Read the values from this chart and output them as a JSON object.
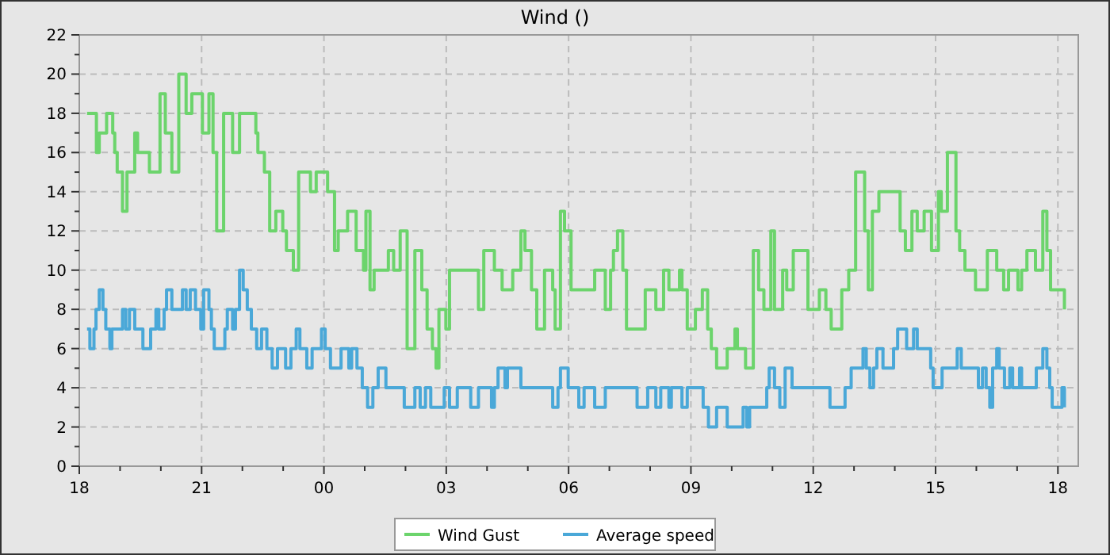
{
  "chart_data": {
    "type": "step",
    "title": "Wind ()",
    "legend": "bottom",
    "grid": true,
    "line_style": "solid",
    "marker": "none",
    "xlim": [
      18,
      42.5
    ],
    "xticks": [
      {
        "value": 18,
        "label": "18"
      },
      {
        "value": 19,
        "label": null
      },
      {
        "value": 20,
        "label": null
      },
      {
        "value": 21,
        "label": "21"
      },
      {
        "value": 22,
        "label": null
      },
      {
        "value": 23,
        "label": null
      },
      {
        "value": 24,
        "label": "00"
      },
      {
        "value": 25,
        "label": null
      },
      {
        "value": 26,
        "label": null
      },
      {
        "value": 27,
        "label": "03"
      },
      {
        "value": 28,
        "label": null
      },
      {
        "value": 29,
        "label": null
      },
      {
        "value": 30,
        "label": "06"
      },
      {
        "value": 31,
        "label": null
      },
      {
        "value": 32,
        "label": null
      },
      {
        "value": 33,
        "label": "09"
      },
      {
        "value": 34,
        "label": null
      },
      {
        "value": 35,
        "label": null
      },
      {
        "value": 36,
        "label": "12"
      },
      {
        "value": 37,
        "label": null
      },
      {
        "value": 38,
        "label": null
      },
      {
        "value": 39,
        "label": "15"
      },
      {
        "value": 40,
        "label": null
      },
      {
        "value": 41,
        "label": null
      },
      {
        "value": 42,
        "label": "18"
      }
    ],
    "ylim": [
      0,
      22
    ],
    "yticks": [
      0,
      {
        "value": 1,
        "label": null
      },
      2,
      {
        "value": 3,
        "label": null
      },
      4,
      {
        "value": 5,
        "label": null
      },
      6,
      {
        "value": 7,
        "label": null
      },
      8,
      {
        "value": 9,
        "label": null
      },
      10,
      {
        "value": 11,
        "label": null
      },
      12,
      {
        "value": 13,
        "label": null
      },
      14,
      {
        "value": 15,
        "label": null
      },
      16,
      {
        "value": 17,
        "label": null
      },
      18,
      {
        "value": 19,
        "label": null
      },
      20,
      {
        "value": 21,
        "label": null
      },
      22
    ],
    "series": [
      {
        "name": "Wind Gust",
        "color": "#6cd46c",
        "x": [
          18.19,
          18.42,
          18.49,
          18.67,
          18.82,
          18.87,
          18.93,
          19.06,
          19.17,
          19.36,
          19.43,
          19.72,
          19.98,
          20.11,
          20.27,
          20.44,
          20.62,
          20.76,
          21.02,
          21.18,
          21.28,
          21.37,
          21.54,
          21.76,
          21.93,
          22.33,
          22.38,
          22.54,
          22.67,
          22.82,
          22.99,
          23.08,
          23.25,
          23.38,
          23.67,
          23.81,
          24.09,
          24.26,
          24.35,
          24.58,
          24.79,
          24.97,
          25.03,
          25.13,
          25.23,
          25.58,
          25.71,
          25.87,
          26.04,
          26.23,
          26.4,
          26.53,
          26.66,
          26.75,
          26.82,
          26.99,
          27.08,
          27.57,
          27.79,
          27.92,
          28.18,
          28.37,
          28.63,
          28.83,
          28.93,
          29.09,
          29.22,
          29.41,
          29.61,
          29.67,
          29.8,
          29.9,
          30.06,
          30.64,
          30.9,
          31.03,
          31.1,
          31.2,
          31.33,
          31.42,
          31.88,
          32.14,
          32.33,
          32.46,
          32.72,
          32.78,
          32.91,
          33.11,
          33.28,
          33.41,
          33.5,
          33.63,
          33.89,
          34.08,
          34.14,
          34.34,
          34.53,
          34.66,
          34.79,
          34.96,
          35.05,
          35.25,
          35.35,
          35.51,
          35.87,
          36.15,
          36.31,
          36.44,
          36.7,
          36.87,
          37.04,
          37.26,
          37.35,
          37.45,
          37.61,
          38.13,
          38.26,
          38.42,
          38.55,
          38.72,
          38.9,
          39.07,
          39.14,
          39.29,
          39.5,
          39.59,
          39.72,
          39.98,
          40.27,
          40.5,
          40.67,
          40.79,
          41.02,
          41.11,
          41.24,
          41.45,
          41.63,
          41.73,
          41.82,
          42.16
        ],
        "values": [
          18,
          16,
          17,
          18,
          17,
          16,
          15,
          13,
          15,
          17,
          16,
          15,
          19,
          17,
          15,
          20,
          18,
          19,
          17,
          19,
          16,
          12,
          18,
          16,
          18,
          17,
          16,
          15,
          12,
          13,
          12,
          11,
          10,
          15,
          14,
          15,
          14,
          11,
          12,
          13,
          11,
          10,
          13,
          9,
          10,
          11,
          10,
          12,
          6,
          11,
          9,
          7,
          6,
          5,
          8,
          7,
          10,
          10,
          8,
          11,
          10,
          9,
          10,
          12,
          11,
          9,
          7,
          10,
          9,
          7,
          13,
          12,
          9,
          10,
          8,
          10,
          11,
          12,
          10,
          7,
          9,
          8,
          10,
          9,
          10,
          9,
          7,
          8,
          9,
          7,
          6,
          5,
          6,
          7,
          6,
          5,
          11,
          9,
          8,
          12,
          8,
          10,
          9,
          11,
          8,
          9,
          8,
          7,
          9,
          10,
          15,
          12,
          9,
          13,
          14,
          12,
          11,
          13,
          12,
          13,
          11,
          14,
          13,
          16,
          12,
          11,
          10,
          9,
          11,
          10,
          9,
          10,
          9,
          10,
          11,
          10,
          13,
          11,
          9,
          8
        ]
      },
      {
        "name": "Average speed",
        "color": "#4aa8d8",
        "x": [
          18.19,
          18.26,
          18.36,
          18.41,
          18.49,
          18.58,
          18.65,
          18.75,
          18.8,
          19.06,
          19.14,
          19.23,
          19.36,
          19.56,
          19.75,
          19.88,
          19.95,
          20.08,
          20.14,
          20.27,
          20.53,
          20.62,
          20.72,
          20.85,
          20.98,
          21.05,
          21.18,
          21.24,
          21.31,
          21.57,
          21.63,
          21.76,
          21.83,
          21.93,
          22.02,
          22.12,
          22.22,
          22.35,
          22.47,
          22.6,
          22.73,
          22.86,
          23.06,
          23.19,
          23.32,
          23.41,
          23.58,
          23.71,
          23.94,
          24.03,
          24.16,
          24.42,
          24.61,
          24.68,
          24.81,
          24.94,
          25.07,
          25.2,
          25.33,
          25.52,
          25.97,
          26.23,
          26.36,
          26.49,
          26.62,
          26.95,
          27.08,
          27.27,
          27.6,
          27.79,
          28.11,
          28.18,
          28.27,
          28.44,
          28.5,
          28.83,
          29.61,
          29.74,
          29.8,
          29.99,
          30.25,
          30.38,
          30.64,
          30.9,
          31.68,
          31.94,
          32.14,
          32.26,
          32.46,
          32.52,
          32.78,
          32.91,
          33.3,
          33.43,
          33.63,
          33.89,
          34.28,
          34.37,
          34.44,
          34.86,
          34.92,
          35.05,
          35.18,
          35.31,
          35.48,
          36.41,
          36.78,
          36.93,
          37.22,
          37.3,
          37.39,
          37.48,
          37.56,
          37.71,
          37.97,
          38.07,
          38.29,
          38.46,
          38.55,
          38.88,
          38.94,
          39.16,
          39.53,
          39.63,
          40.05,
          40.15,
          40.24,
          40.33,
          40.4,
          40.5,
          40.56,
          40.69,
          40.82,
          40.89,
          41.06,
          41.11,
          41.47,
          41.63,
          41.73,
          41.8,
          41.86,
          42.1,
          42.16
        ],
        "values": [
          7,
          6,
          7,
          8,
          9,
          8,
          7,
          6,
          7,
          8,
          7,
          8,
          7,
          6,
          7,
          8,
          7,
          8,
          9,
          8,
          9,
          8,
          9,
          8,
          7,
          9,
          8,
          7,
          6,
          7,
          8,
          7,
          8,
          10,
          9,
          8,
          7,
          6,
          7,
          6,
          5,
          6,
          5,
          6,
          7,
          6,
          5,
          6,
          7,
          6,
          5,
          6,
          5,
          6,
          5,
          4,
          3,
          4,
          5,
          4,
          3,
          4,
          3,
          4,
          3,
          4,
          3,
          4,
          3,
          4,
          3,
          4,
          5,
          4,
          5,
          4,
          3,
          4,
          5,
          4,
          3,
          4,
          3,
          4,
          3,
          4,
          3,
          4,
          3,
          4,
          3,
          4,
          3,
          2,
          3,
          2,
          3,
          2,
          3,
          4,
          5,
          4,
          3,
          5,
          4,
          3,
          4,
          5,
          6,
          5,
          4,
          5,
          6,
          5,
          6,
          7,
          6,
          7,
          6,
          5,
          4,
          5,
          6,
          5,
          4,
          5,
          4,
          3,
          5,
          6,
          5,
          4,
          5,
          4,
          5,
          4,
          5,
          6,
          5,
          4,
          3,
          4,
          3
        ]
      }
    ]
  }
}
